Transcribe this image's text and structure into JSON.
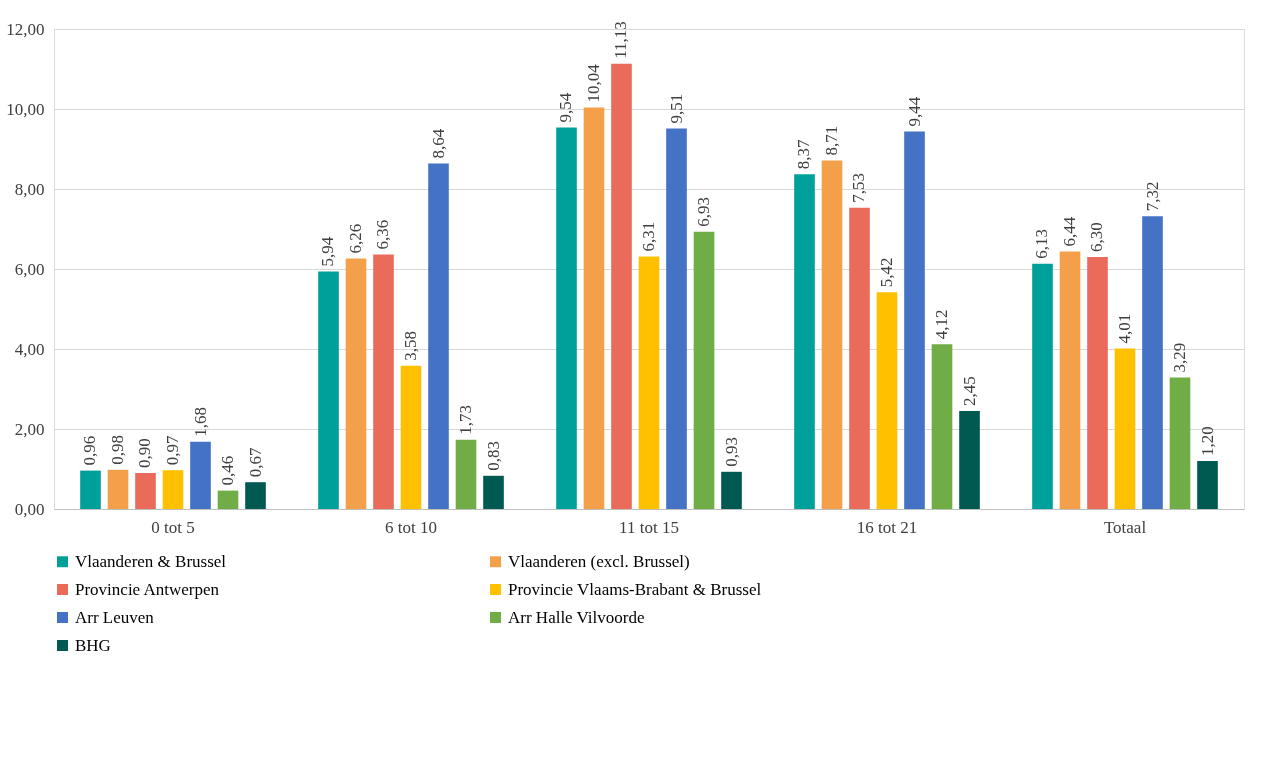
{
  "chart_data": {
    "type": "bar",
    "categories": [
      "0 tot 5",
      "6 tot 10",
      "11 tot 15",
      "16 tot 21",
      "Totaal"
    ],
    "series": [
      {
        "name": "Vlaanderen & Brussel",
        "color": "#00a09a",
        "values": [
          0.96,
          5.94,
          9.54,
          8.37,
          6.13
        ],
        "value_labels": [
          "0,96",
          "5,94",
          "9,54",
          "8,37",
          "6,13"
        ]
      },
      {
        "name": "Vlaanderen (excl. Brussel)",
        "color": "#f4a04a",
        "values": [
          0.98,
          6.26,
          10.04,
          8.71,
          6.44
        ],
        "value_labels": [
          "0,98",
          "6,26",
          "10,04",
          "8,71",
          "6,44"
        ]
      },
      {
        "name": "Provincie Antwerpen",
        "color": "#eb6b5b",
        "values": [
          0.9,
          6.36,
          11.13,
          7.53,
          6.3
        ],
        "value_labels": [
          "0,90",
          "6,36",
          "11,13",
          "7,53",
          "6,30"
        ]
      },
      {
        "name": "Provincie Vlaams-Brabant & Brussel",
        "color": "#ffc000",
        "values": [
          0.97,
          3.58,
          6.31,
          5.42,
          4.01
        ],
        "value_labels": [
          "0,97",
          "3,58",
          "6,31",
          "5,42",
          "4,01"
        ]
      },
      {
        "name": "Arr Leuven",
        "color": "#4472c4",
        "values": [
          1.68,
          8.64,
          9.51,
          9.44,
          7.32
        ],
        "value_labels": [
          "1,68",
          "8,64",
          "9,51",
          "9,44",
          "7,32"
        ]
      },
      {
        "name": "Arr Halle Vilvoorde",
        "color": "#70ad47",
        "values": [
          0.46,
          1.73,
          6.93,
          4.12,
          3.29
        ],
        "value_labels": [
          "0,46",
          "1,73",
          "6,93",
          "4,12",
          "3,29"
        ]
      },
      {
        "name": "BHG",
        "color": "#005a52",
        "values": [
          0.67,
          0.83,
          0.93,
          2.45,
          1.2
        ],
        "value_labels": [
          "0,67",
          "0,83",
          "0,93",
          "2,45",
          "1,20"
        ]
      }
    ],
    "ylim": [
      0,
      12
    ],
    "yticks": [
      {
        "value": 0,
        "label": "0,00"
      },
      {
        "value": 2,
        "label": "2,00"
      },
      {
        "value": 4,
        "label": "4,00"
      },
      {
        "value": 6,
        "label": "6,00"
      },
      {
        "value": 8,
        "label": "8,00"
      },
      {
        "value": 10,
        "label": "10,00"
      },
      {
        "value": 12,
        "label": "12,00"
      }
    ],
    "grid": "y",
    "legend": "bottom"
  }
}
